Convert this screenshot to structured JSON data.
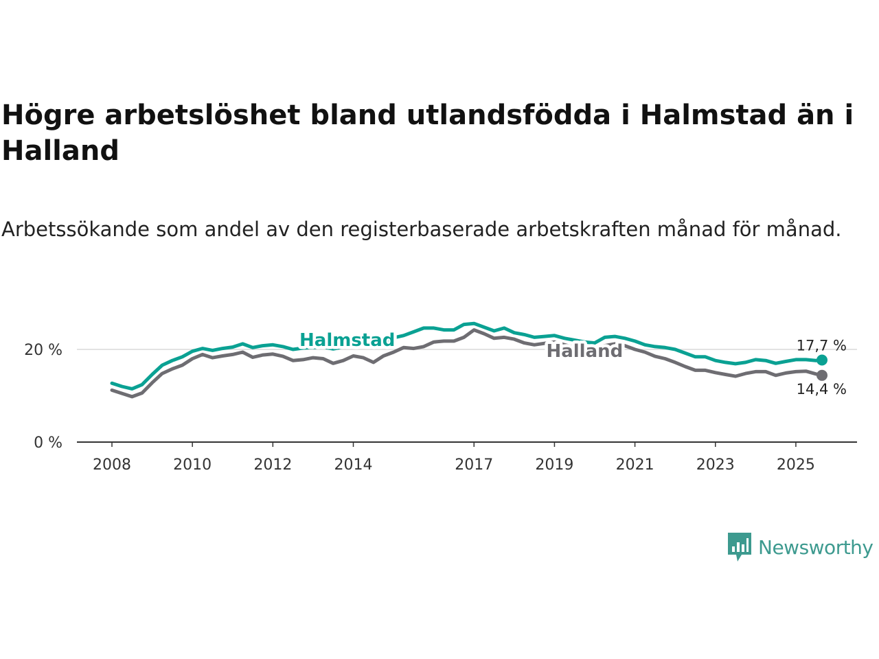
{
  "chart_data": {
    "type": "line",
    "title": "Högre arbetslöshet bland utlandsfödda i Halmstad än i Halland",
    "subtitle": "Arbetssökande som andel av den registerbaserade arbetskraften månad för månad.",
    "ylim": [
      0,
      27
    ],
    "yticks": [
      0,
      20
    ],
    "ytick_labels": [
      "0 %",
      "20 %"
    ],
    "xlim": [
      2008,
      2025.65
    ],
    "xticks": [
      2008,
      2010,
      2012,
      2014,
      2017,
      2019,
      2021,
      2023,
      2025
    ],
    "xtick_labels": [
      "2008",
      "2010",
      "2012",
      "2014",
      "2017",
      "2019",
      "2021",
      "2023",
      "2025"
    ],
    "grid": "horizontal at 20 %",
    "series": [
      {
        "name": "Halmstad",
        "color": "#0aa193",
        "end_label": "17,7 %",
        "x": [
          2008.0,
          2008.25,
          2008.5,
          2008.75,
          2009.0,
          2009.25,
          2009.5,
          2009.75,
          2010.0,
          2010.25,
          2010.5,
          2010.75,
          2011.0,
          2011.25,
          2011.5,
          2011.75,
          2012.0,
          2012.25,
          2012.5,
          2012.75,
          2013.0,
          2013.25,
          2013.5,
          2013.75,
          2014.0,
          2014.25,
          2014.5,
          2014.75,
          2015.0,
          2015.25,
          2015.5,
          2015.75,
          2016.0,
          2016.25,
          2016.5,
          2016.75,
          2017.0,
          2017.25,
          2017.5,
          2017.75,
          2018.0,
          2018.25,
          2018.5,
          2018.75,
          2019.0,
          2019.25,
          2019.5,
          2019.75,
          2020.0,
          2020.25,
          2020.5,
          2020.75,
          2021.0,
          2021.25,
          2021.5,
          2021.75,
          2022.0,
          2022.25,
          2022.5,
          2022.75,
          2023.0,
          2023.25,
          2023.5,
          2023.75,
          2024.0,
          2024.25,
          2024.5,
          2024.75,
          2025.0,
          2025.25,
          2025.5,
          2025.65
        ],
        "values": [
          12.7,
          12.0,
          11.5,
          12.4,
          14.6,
          16.6,
          17.6,
          18.4,
          19.6,
          20.2,
          19.8,
          20.2,
          20.5,
          21.2,
          20.4,
          20.8,
          21.0,
          20.6,
          20.0,
          20.3,
          20.4,
          20.5,
          20.1,
          20.5,
          20.7,
          21.0,
          21.2,
          21.8,
          22.5,
          23.0,
          23.8,
          24.6,
          24.6,
          24.2,
          24.2,
          25.4,
          25.6,
          24.8,
          24.0,
          24.6,
          23.6,
          23.2,
          22.6,
          22.8,
          23.0,
          22.4,
          22.0,
          21.6,
          21.4,
          22.6,
          22.8,
          22.4,
          21.8,
          21.0,
          20.6,
          20.4,
          20.0,
          19.2,
          18.4,
          18.4,
          17.6,
          17.2,
          16.9,
          17.2,
          17.8,
          17.6,
          17.0,
          17.4,
          17.8,
          17.8,
          17.6,
          17.7
        ]
      },
      {
        "name": "Halland",
        "color": "#6e6d72",
        "end_label": "14,4 %",
        "x": [
          2008.0,
          2008.25,
          2008.5,
          2008.75,
          2009.0,
          2009.25,
          2009.5,
          2009.75,
          2010.0,
          2010.25,
          2010.5,
          2010.75,
          2011.0,
          2011.25,
          2011.5,
          2011.75,
          2012.0,
          2012.25,
          2012.5,
          2012.75,
          2013.0,
          2013.25,
          2013.5,
          2013.75,
          2014.0,
          2014.25,
          2014.5,
          2014.75,
          2015.0,
          2015.25,
          2015.5,
          2015.75,
          2016.0,
          2016.25,
          2016.5,
          2016.75,
          2017.0,
          2017.25,
          2017.5,
          2017.75,
          2018.0,
          2018.25,
          2018.5,
          2018.75,
          2019.0,
          2019.25,
          2019.5,
          2019.75,
          2020.0,
          2020.25,
          2020.5,
          2020.75,
          2021.0,
          2021.25,
          2021.5,
          2021.75,
          2022.0,
          2022.25,
          2022.5,
          2022.75,
          2023.0,
          2023.25,
          2023.5,
          2023.75,
          2024.0,
          2024.25,
          2024.5,
          2024.75,
          2025.0,
          2025.25,
          2025.5,
          2025.65
        ],
        "values": [
          11.2,
          10.5,
          9.8,
          10.6,
          12.8,
          14.8,
          15.8,
          16.6,
          18.0,
          18.9,
          18.2,
          18.6,
          18.9,
          19.4,
          18.3,
          18.8,
          19.0,
          18.5,
          17.6,
          17.8,
          18.2,
          18.0,
          17.0,
          17.6,
          18.6,
          18.2,
          17.2,
          18.6,
          19.4,
          20.4,
          20.2,
          20.6,
          21.6,
          21.8,
          21.8,
          22.6,
          24.2,
          23.4,
          22.4,
          22.6,
          22.2,
          21.4,
          21.0,
          21.3,
          21.6,
          21.0,
          20.4,
          20.2,
          20.0,
          20.8,
          21.2,
          20.8,
          20.0,
          19.4,
          18.5,
          18.0,
          17.2,
          16.3,
          15.5,
          15.5,
          15.0,
          14.6,
          14.2,
          14.8,
          15.2,
          15.2,
          14.4,
          14.9,
          15.2,
          15.3,
          14.7,
          14.4
        ]
      }
    ]
  },
  "brand": {
    "name": "Newsworthy",
    "color": "#3d9a8f"
  }
}
